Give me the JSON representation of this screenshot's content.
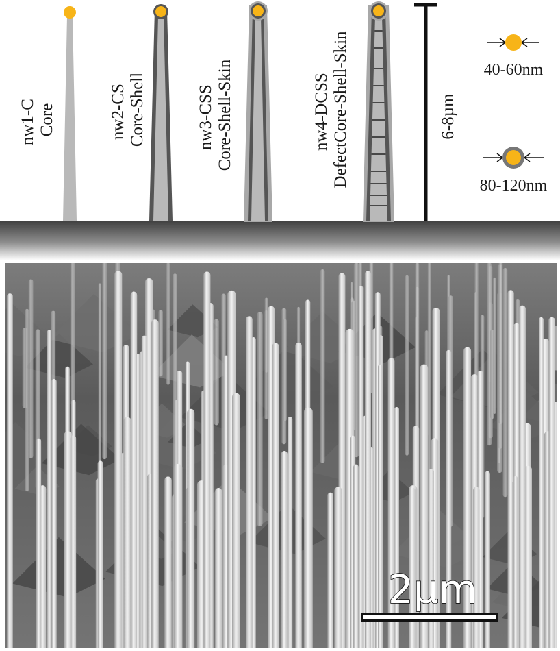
{
  "nanowires": [
    {
      "id": "nw1-C",
      "name": "nw1-C",
      "type": "Core"
    },
    {
      "id": "nw2-CS",
      "name": "nw2-CS",
      "type": "Core-Shell"
    },
    {
      "id": "nw3-CSS",
      "name": "nw3-CSS",
      "type": "Core-Shell-Skin"
    },
    {
      "id": "nw4-DCSS",
      "name": "nw4-DCSS",
      "type": "DefectCore-Shell-Skin"
    }
  ],
  "length_label": "6-8µm",
  "diameters": {
    "core": "40-60nm",
    "shell": "80-120nm"
  },
  "scale_bar": "2µm",
  "colors": {
    "gold": "#F7B418",
    "core_gray": "#B9B9B9",
    "shell_dark": "#555555",
    "skin_gray": "#A8A8A8",
    "substrate_dark": "#444444"
  }
}
